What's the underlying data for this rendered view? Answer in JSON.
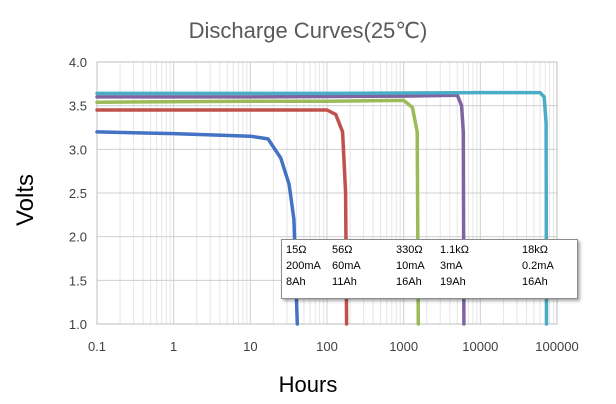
{
  "chart_data": {
    "type": "line",
    "title": "Discharge Curves(25℃)",
    "xlabel": "Hours",
    "ylabel": "Volts",
    "x_scale": "log",
    "xlim": [
      0.1,
      100000
    ],
    "ylim": [
      1.0,
      4.0
    ],
    "x_ticks": [
      "0.1",
      "1",
      "10",
      "100",
      "1000",
      "10000",
      "100000"
    ],
    "y_ticks": [
      "1.0",
      "1.5",
      "2.0",
      "2.5",
      "3.0",
      "3.5",
      "4.0"
    ],
    "grid": true,
    "legend_position": "lower-right",
    "series": [
      {
        "name": "15Ω 200mA 8Ah",
        "color": "#4472c4",
        "points": [
          [
            0.1,
            3.2
          ],
          [
            1,
            3.18
          ],
          [
            10,
            3.15
          ],
          [
            17,
            3.12
          ],
          [
            25,
            2.9
          ],
          [
            32,
            2.6
          ],
          [
            37,
            2.2
          ],
          [
            41,
            1.0
          ]
        ]
      },
      {
        "name": "56Ω 60mA 11Ah",
        "color": "#c0504d",
        "points": [
          [
            0.1,
            3.45
          ],
          [
            10,
            3.45
          ],
          [
            100,
            3.45
          ],
          [
            130,
            3.4
          ],
          [
            160,
            3.2
          ],
          [
            175,
            2.5
          ],
          [
            180,
            1.0
          ]
        ]
      },
      {
        "name": "330Ω 10mA 16Ah",
        "color": "#9bbb59",
        "points": [
          [
            0.1,
            3.54
          ],
          [
            10,
            3.55
          ],
          [
            100,
            3.55
          ],
          [
            1000,
            3.56
          ],
          [
            1300,
            3.48
          ],
          [
            1500,
            3.2
          ],
          [
            1550,
            1.0
          ]
        ]
      },
      {
        "name": "1.1kΩ 3mA 19Ah",
        "color": "#8064a2",
        "points": [
          [
            0.1,
            3.6
          ],
          [
            10,
            3.6
          ],
          [
            1000,
            3.61
          ],
          [
            5000,
            3.62
          ],
          [
            5700,
            3.5
          ],
          [
            6000,
            3.2
          ],
          [
            6100,
            1.0
          ]
        ]
      },
      {
        "name": "18kΩ 0.2mA 16Ah",
        "color": "#4bacc6",
        "points": [
          [
            0.1,
            3.64
          ],
          [
            100,
            3.64
          ],
          [
            10000,
            3.65
          ],
          [
            60000,
            3.65
          ],
          [
            68000,
            3.6
          ],
          [
            72000,
            3.3
          ],
          [
            73000,
            1.0
          ]
        ]
      }
    ],
    "legend": {
      "columns": [
        [
          "15Ω",
          "200mA",
          "8Ah"
        ],
        [
          "56Ω",
          "60mA",
          "11Ah"
        ],
        [
          "330Ω",
          "10mA",
          "16Ah"
        ],
        [
          "1.1kΩ",
          "3mA",
          "19Ah"
        ],
        [
          "18kΩ",
          "0.2mA",
          "16Ah"
        ]
      ]
    }
  }
}
